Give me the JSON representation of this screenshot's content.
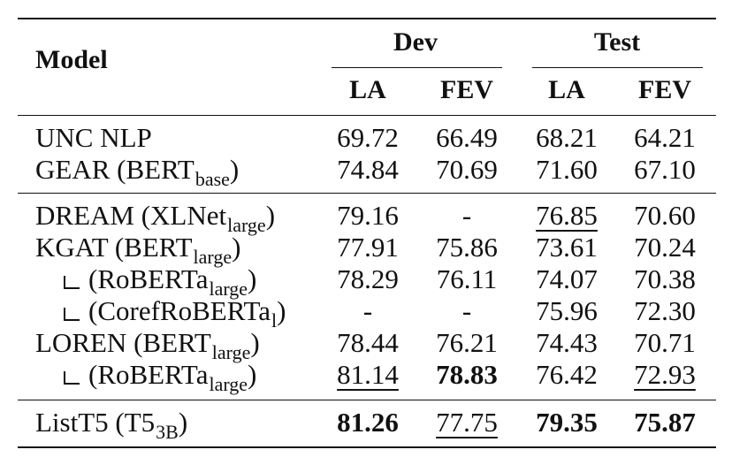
{
  "table": {
    "headers": {
      "model": "Model",
      "dev": "Dev",
      "test": "Test",
      "columns": [
        "LA",
        "FEV",
        "LA",
        "FEV"
      ]
    },
    "rows": [
      {
        "model": "UNC NLP",
        "values": [
          "69.72",
          "66.49",
          "68.21",
          "64.21"
        ]
      },
      {
        "model": "GEAR (BERT",
        "sub": "base",
        "suffix": ")",
        "values": [
          "74.84",
          "70.69",
          "71.60",
          "67.10"
        ]
      },
      {
        "model": "DREAM (XLNet",
        "sub": "large",
        "suffix": ")",
        "values": [
          "79.16",
          "-",
          "76.85",
          "70.60"
        ]
      },
      {
        "model": "KGAT (BERT",
        "sub": "large",
        "suffix": ")",
        "values": [
          "77.91",
          "75.86",
          "73.61",
          "70.24"
        ]
      },
      {
        "model": "(RoBERTa",
        "sub": "large",
        "suffix": ")",
        "values": [
          "78.29",
          "76.11",
          "74.07",
          "70.38"
        ]
      },
      {
        "model": "(CorefRoBERTa",
        "sub": "l",
        "suffix": ")",
        "values": [
          "-",
          "-",
          "75.96",
          "72.30"
        ]
      },
      {
        "model": "LOREN (BERT",
        "sub": "large",
        "suffix": ")",
        "values": [
          "78.44",
          "76.21",
          "74.43",
          "70.71"
        ]
      },
      {
        "model": "(RoBERTa",
        "sub": "large",
        "suffix": ")",
        "values": [
          "81.14",
          "78.83",
          "76.42",
          "72.93"
        ]
      },
      {
        "model": "ListT5 (T5",
        "sub": "3B",
        "suffix": ")",
        "values": [
          "81.26",
          "77.75",
          "79.35",
          "75.87"
        ]
      }
    ]
  }
}
